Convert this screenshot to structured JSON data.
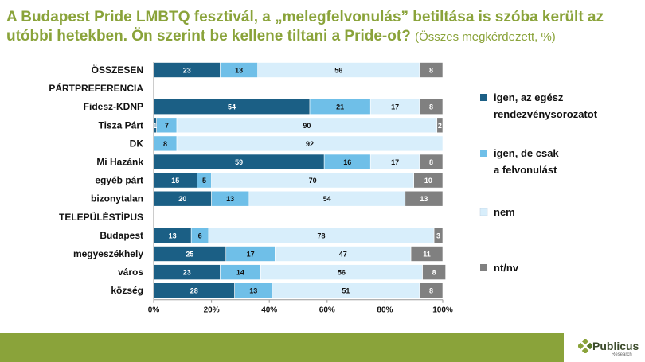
{
  "title": {
    "main": "A Budapest Pride LMBTQ fesztivál, a „melegfelvonulás” betiltása is szóba került az utóbbi hetekben. Ön szerint be kellene tiltani a Pride-ot?",
    "subtitle": "(Összes megkérdezett, %)"
  },
  "colors": {
    "title": "#8aa33a",
    "footer": "#8aa33a",
    "series": [
      "#1b5f85",
      "#6fbfe8",
      "#d8eefb",
      "#808080"
    ]
  },
  "chart_data": {
    "type": "bar",
    "orientation": "horizontal",
    "stacked": true,
    "percent_axis": true,
    "categories": [
      "ÖSSZESEN",
      "PÁRTPREFERENCIA",
      "Fidesz-KDNP",
      "Tisza Párt",
      "DK",
      "Mi Hazánk",
      "egyéb párt",
      "bizonytalan",
      "TELEPÜLÉSTÍPUS",
      "Budapest",
      "megyeszékhely",
      "város",
      "község"
    ],
    "section_headers": [
      "ÖSSZESEN",
      "PÁRTPREFERENCIA",
      "TELEPÜLÉSTÍPUS"
    ],
    "series": [
      {
        "name": "igen, az egész rendezvénysorozatot",
        "values": [
          23,
          null,
          54,
          1,
          null,
          59,
          15,
          20,
          null,
          13,
          25,
          23,
          28
        ]
      },
      {
        "name": "igen, de csak a felvonulást",
        "values": [
          13,
          null,
          21,
          7,
          8,
          16,
          5,
          13,
          null,
          6,
          17,
          14,
          13
        ]
      },
      {
        "name": "nem",
        "values": [
          56,
          null,
          17,
          90,
          92,
          17,
          70,
          54,
          null,
          78,
          47,
          56,
          51
        ]
      },
      {
        "name": "nt/nv",
        "values": [
          8,
          null,
          8,
          2,
          null,
          8,
          10,
          13,
          null,
          3,
          11,
          8,
          8
        ]
      }
    ],
    "x_ticks": [
      "0%",
      "20%",
      "40%",
      "60%",
      "80%",
      "100%"
    ],
    "xlim": [
      0,
      100
    ],
    "grid": false,
    "legend_position": "right"
  },
  "logo": {
    "name": "Publicus",
    "tagline": "Research"
  }
}
